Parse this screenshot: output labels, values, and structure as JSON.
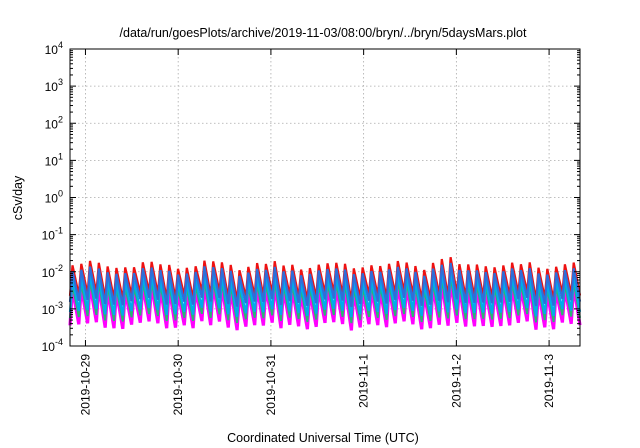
{
  "chart_data": {
    "type": "line",
    "title": "/data/run/goesPlots/archive/2019-11-03/08:00/bryn/../bryn/5daysMars.plot",
    "xlabel": "Coordinated Universal Time (UTC)",
    "ylabel": "cSv/day",
    "y_scale": "log",
    "ylim": [
      0.0001,
      10000
    ],
    "y_tick_labels": [
      {
        "base": "10",
        "exp": "-4"
      },
      {
        "base": "10",
        "exp": "-3"
      },
      {
        "base": "10",
        "exp": "-2"
      },
      {
        "base": "10",
        "exp": "-1"
      },
      {
        "base": "10",
        "exp": "0"
      },
      {
        "base": "10",
        "exp": "1"
      },
      {
        "base": "10",
        "exp": "2"
      },
      {
        "base": "10",
        "exp": "3"
      },
      {
        "base": "10",
        "exp": "4"
      }
    ],
    "xlim": [
      "2019-10-28T20:00",
      "2019-11-03T08:00"
    ],
    "x_ticks": [
      {
        "label": "2019-10-29",
        "at": "2019-10-29T00:00"
      },
      {
        "label": "2019-10-30",
        "at": "2019-10-30T00:00"
      },
      {
        "label": "2019-10-31",
        "at": "2019-10-31T00:00"
      },
      {
        "label": "2019-11-1",
        "at": "2019-11-01T00:00"
      },
      {
        "label": "2019-11-2",
        "at": "2019-11-02T00:00"
      },
      {
        "label": "2019-11-3",
        "at": "2019-11-03T00:00"
      }
    ],
    "grid": true,
    "legend": "none",
    "series": [
      {
        "color": "#ff00ff",
        "width": 3.2,
        "peak": 0.0035,
        "trough": 0.00035
      },
      {
        "color": "#2ab673",
        "width": 2.0,
        "peak": 0.0045,
        "trough": 0.00055
      },
      {
        "color": "#00aaee",
        "width": 2.2,
        "peak": 0.0065,
        "trough": 0.0008
      },
      {
        "color": "#ee1111",
        "width": 2.2,
        "peak": 0.015,
        "trough": 0.0022
      },
      {
        "color": "#2f6ed9",
        "width": 2.2,
        "peak": 0.0105,
        "trough": 0.0015
      }
    ]
  }
}
